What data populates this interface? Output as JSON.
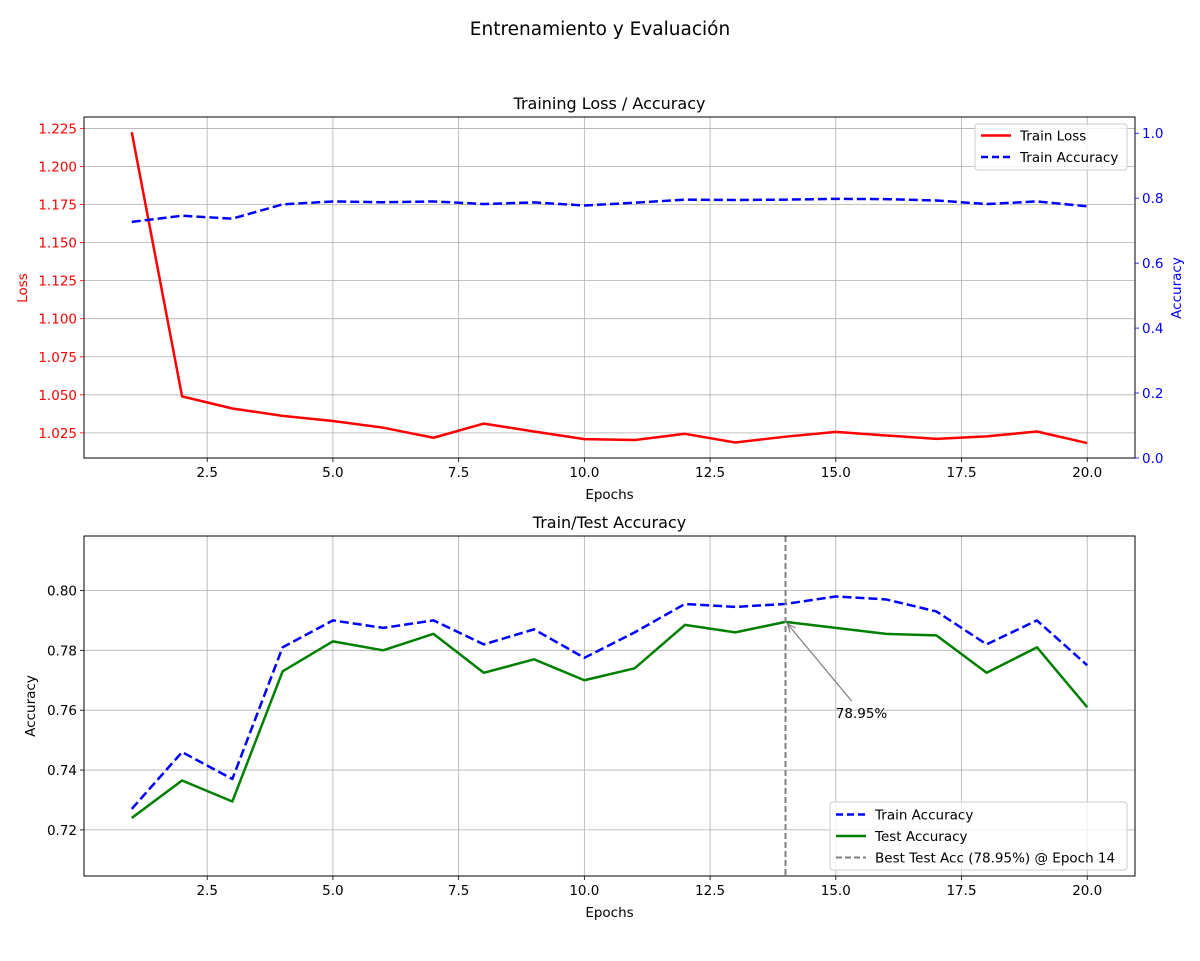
{
  "suptitle": "Entrenamiento y Evaluación",
  "colors": {
    "loss": "#ff0000",
    "train_acc": "#0000ff",
    "test_acc": "#008000",
    "best_line": "#808080",
    "grid": "#b0b0b0"
  },
  "chart_data": [
    {
      "type": "line",
      "title": "Training Loss / Accuracy",
      "xlabel": "Epochs",
      "ylabel": "Loss",
      "y2label": "Accuracy",
      "x": [
        1,
        2,
        3,
        4,
        5,
        6,
        7,
        8,
        9,
        10,
        11,
        12,
        13,
        14,
        15,
        16,
        17,
        18,
        19,
        20
      ],
      "xlim": [
        0.05,
        20.95
      ],
      "ylim": [
        1.0085,
        1.2325
      ],
      "y2lim": [
        0.0,
        1.05
      ],
      "xticks": [
        2.5,
        5.0,
        7.5,
        10.0,
        12.5,
        15.0,
        17.5,
        20.0
      ],
      "xtick_labels": [
        "2.5",
        "5.0",
        "7.5",
        "10.0",
        "12.5",
        "15.0",
        "17.5",
        "20.0"
      ],
      "yticks": [
        1.025,
        1.05,
        1.075,
        1.1,
        1.125,
        1.15,
        1.175,
        1.2,
        1.225
      ],
      "ytick_labels": [
        "1.025",
        "1.050",
        "1.075",
        "1.100",
        "1.125",
        "1.150",
        "1.175",
        "1.200",
        "1.225"
      ],
      "y2ticks": [
        0.0,
        0.2,
        0.4,
        0.6,
        0.8,
        1.0
      ],
      "y2tick_labels": [
        "0.0",
        "0.2",
        "0.4",
        "0.6",
        "0.8",
        "1.0"
      ],
      "grid": true,
      "legend": "upper right",
      "series": [
        {
          "name": "Train Loss",
          "axis": "left",
          "style": "solid",
          "color": "#ff0000",
          "values": [
            1.2225,
            1.049,
            1.041,
            1.0362,
            1.0328,
            1.0284,
            1.0218,
            1.0311,
            1.0259,
            1.0209,
            1.0203,
            1.0244,
            1.0187,
            1.0225,
            1.0257,
            1.0233,
            1.0211,
            1.0227,
            1.0259,
            1.0183
          ]
        },
        {
          "name": "Train Accuracy",
          "axis": "right",
          "style": "dashed",
          "color": "#0000ff",
          "values": [
            0.727,
            0.746,
            0.737,
            0.781,
            0.79,
            0.7875,
            0.79,
            0.782,
            0.787,
            0.7775,
            0.786,
            0.7955,
            0.7945,
            0.7955,
            0.798,
            0.797,
            0.793,
            0.782,
            0.79,
            0.775
          ]
        }
      ]
    },
    {
      "type": "line",
      "title": "Train/Test Accuracy",
      "xlabel": "Epochs",
      "ylabel": "Accuracy",
      "x": [
        1,
        2,
        3,
        4,
        5,
        6,
        7,
        8,
        9,
        10,
        11,
        12,
        13,
        14,
        15,
        16,
        17,
        18,
        19,
        20
      ],
      "xlim": [
        0.05,
        20.95
      ],
      "ylim": [
        0.7046,
        0.8182
      ],
      "xticks": [
        2.5,
        5.0,
        7.5,
        10.0,
        12.5,
        15.0,
        17.5,
        20.0
      ],
      "xtick_labels": [
        "2.5",
        "5.0",
        "7.5",
        "10.0",
        "12.5",
        "15.0",
        "17.5",
        "20.0"
      ],
      "yticks": [
        0.72,
        0.74,
        0.76,
        0.78,
        0.8
      ],
      "ytick_labels": [
        "0.72",
        "0.74",
        "0.76",
        "0.78",
        "0.80"
      ],
      "grid": true,
      "legend": "lower right",
      "series": [
        {
          "name": "Train Accuracy",
          "style": "dashed",
          "color": "#0000ff",
          "values": [
            0.727,
            0.746,
            0.737,
            0.781,
            0.79,
            0.7875,
            0.79,
            0.782,
            0.787,
            0.7775,
            0.786,
            0.7955,
            0.7945,
            0.7955,
            0.798,
            0.797,
            0.793,
            0.782,
            0.79,
            0.775
          ]
        },
        {
          "name": "Test Accuracy",
          "style": "solid",
          "color": "#008000",
          "values": [
            0.724,
            0.7365,
            0.7295,
            0.773,
            0.783,
            0.78,
            0.7855,
            0.7725,
            0.777,
            0.77,
            0.774,
            0.7885,
            0.786,
            0.7895,
            0.7875,
            0.7855,
            0.785,
            0.7725,
            0.781,
            0.761
          ]
        }
      ],
      "vline": {
        "x": 14,
        "label": "Best Test Acc (78.95%) @ Epoch 14",
        "style": "dashed",
        "color": "#808080"
      },
      "annotation": {
        "text": "78.95%",
        "xy": [
          14,
          0.7895
        ],
        "xytext": [
          15,
          0.759
        ]
      }
    }
  ]
}
